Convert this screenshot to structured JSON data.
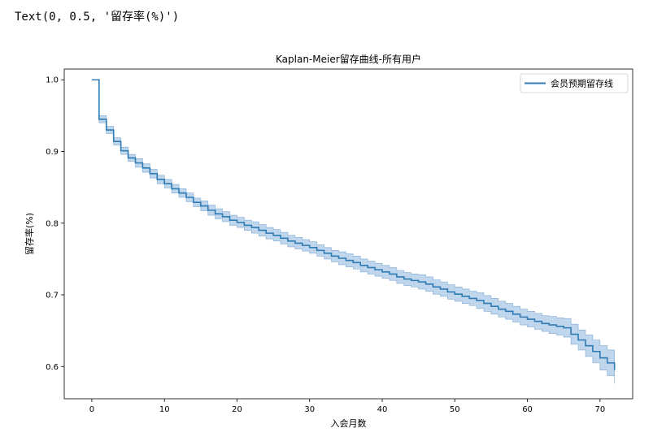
{
  "output_line": "Text(0, 0.5, '留存率(%)')",
  "chart_data": {
    "type": "line",
    "title": "Kaplan-Meier留存曲线-所有用户",
    "xlabel": "入会月数",
    "ylabel": "留存率(%)",
    "xlim": [
      -3.8,
      74.5
    ],
    "ylim": [
      0.555,
      1.015
    ],
    "xticks": [
      0,
      10,
      20,
      30,
      40,
      50,
      60,
      70
    ],
    "yticks": [
      0.6,
      0.7,
      0.8,
      0.9,
      1.0
    ],
    "ytick_labels": [
      "0.6",
      "0.7",
      "0.8",
      "0.9",
      "1.0"
    ],
    "grid": false,
    "legend_position": "upper right",
    "line_color": "#2f7bb4",
    "band_color": "#a9c8e6",
    "series": [
      {
        "name": "会员预期留存线",
        "step": "post",
        "x": [
          0,
          1,
          2,
          3,
          4,
          5,
          6,
          7,
          8,
          9,
          10,
          11,
          12,
          13,
          14,
          15,
          16,
          17,
          18,
          19,
          20,
          21,
          22,
          23,
          24,
          25,
          26,
          27,
          28,
          29,
          30,
          31,
          32,
          33,
          34,
          35,
          36,
          37,
          38,
          39,
          40,
          41,
          42,
          43,
          44,
          45,
          46,
          47,
          48,
          49,
          50,
          51,
          52,
          53,
          54,
          55,
          56,
          57,
          58,
          59,
          60,
          61,
          62,
          63,
          64,
          65,
          66,
          67,
          68,
          69,
          70,
          71,
          72
        ],
        "values": [
          1.0,
          0.945,
          0.93,
          0.914,
          0.901,
          0.891,
          0.884,
          0.877,
          0.869,
          0.861,
          0.855,
          0.848,
          0.842,
          0.836,
          0.829,
          0.824,
          0.818,
          0.813,
          0.809,
          0.804,
          0.801,
          0.797,
          0.794,
          0.79,
          0.786,
          0.783,
          0.779,
          0.775,
          0.772,
          0.769,
          0.766,
          0.762,
          0.758,
          0.754,
          0.751,
          0.748,
          0.745,
          0.741,
          0.738,
          0.735,
          0.732,
          0.729,
          0.725,
          0.722,
          0.72,
          0.718,
          0.715,
          0.711,
          0.708,
          0.704,
          0.701,
          0.698,
          0.695,
          0.692,
          0.688,
          0.684,
          0.68,
          0.677,
          0.673,
          0.669,
          0.666,
          0.663,
          0.66,
          0.658,
          0.656,
          0.654,
          0.645,
          0.637,
          0.629,
          0.621,
          0.612,
          0.605,
          0.595
        ],
        "ci_lower": [
          1.0,
          0.94,
          0.925,
          0.909,
          0.896,
          0.886,
          0.878,
          0.871,
          0.863,
          0.855,
          0.849,
          0.842,
          0.836,
          0.83,
          0.823,
          0.817,
          0.811,
          0.806,
          0.802,
          0.797,
          0.794,
          0.79,
          0.786,
          0.782,
          0.778,
          0.775,
          0.771,
          0.767,
          0.764,
          0.761,
          0.758,
          0.754,
          0.75,
          0.746,
          0.742,
          0.739,
          0.736,
          0.732,
          0.729,
          0.726,
          0.723,
          0.72,
          0.716,
          0.713,
          0.711,
          0.708,
          0.705,
          0.701,
          0.698,
          0.694,
          0.691,
          0.688,
          0.685,
          0.681,
          0.677,
          0.673,
          0.669,
          0.666,
          0.662,
          0.658,
          0.655,
          0.652,
          0.649,
          0.646,
          0.644,
          0.641,
          0.631,
          0.623,
          0.614,
          0.605,
          0.595,
          0.587,
          0.576
        ],
        "ci_upper": [
          1.0,
          0.95,
          0.935,
          0.919,
          0.906,
          0.896,
          0.89,
          0.883,
          0.875,
          0.867,
          0.861,
          0.854,
          0.848,
          0.842,
          0.835,
          0.831,
          0.825,
          0.82,
          0.816,
          0.811,
          0.808,
          0.804,
          0.802,
          0.798,
          0.794,
          0.791,
          0.787,
          0.783,
          0.78,
          0.777,
          0.774,
          0.77,
          0.766,
          0.762,
          0.76,
          0.757,
          0.754,
          0.75,
          0.747,
          0.744,
          0.741,
          0.738,
          0.734,
          0.731,
          0.729,
          0.728,
          0.725,
          0.721,
          0.718,
          0.714,
          0.711,
          0.708,
          0.705,
          0.703,
          0.699,
          0.695,
          0.691,
          0.688,
          0.684,
          0.68,
          0.677,
          0.674,
          0.671,
          0.67,
          0.668,
          0.667,
          0.659,
          0.651,
          0.644,
          0.637,
          0.629,
          0.623,
          0.614
        ]
      }
    ]
  }
}
